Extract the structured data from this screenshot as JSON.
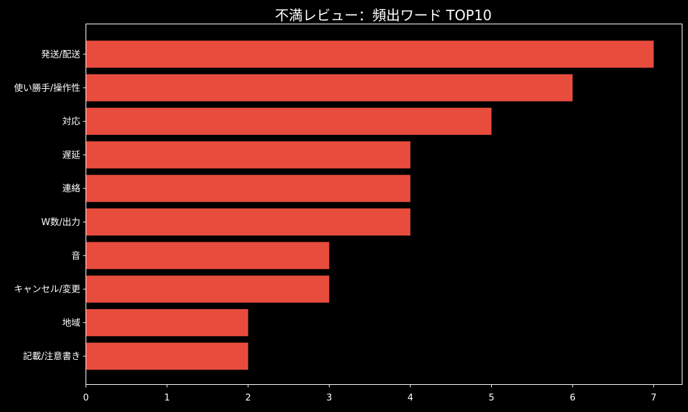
{
  "chart_data": {
    "type": "bar",
    "orientation": "horizontal",
    "title": "不満レビュー：頻出ワード TOP10",
    "xlabel": "",
    "ylabel": "",
    "categories": [
      "発送/配送",
      "使い勝手/操作性",
      "対応",
      "遅延",
      "連絡",
      "W数/出力",
      "音",
      "キャンセル/変更",
      "地域",
      "記載/注意書き"
    ],
    "values": [
      7,
      6,
      5,
      4,
      4,
      4,
      3,
      3,
      2,
      2
    ],
    "xlim": [
      0,
      7.35
    ],
    "xticks": [
      "0",
      "1",
      "2",
      "3",
      "4",
      "5",
      "6",
      "7"
    ],
    "grid": false,
    "legend": "none",
    "colors": {
      "background": "#000000",
      "bar": "#e84c3d",
      "axis": "#ffffff",
      "text": "#ffffff"
    }
  }
}
